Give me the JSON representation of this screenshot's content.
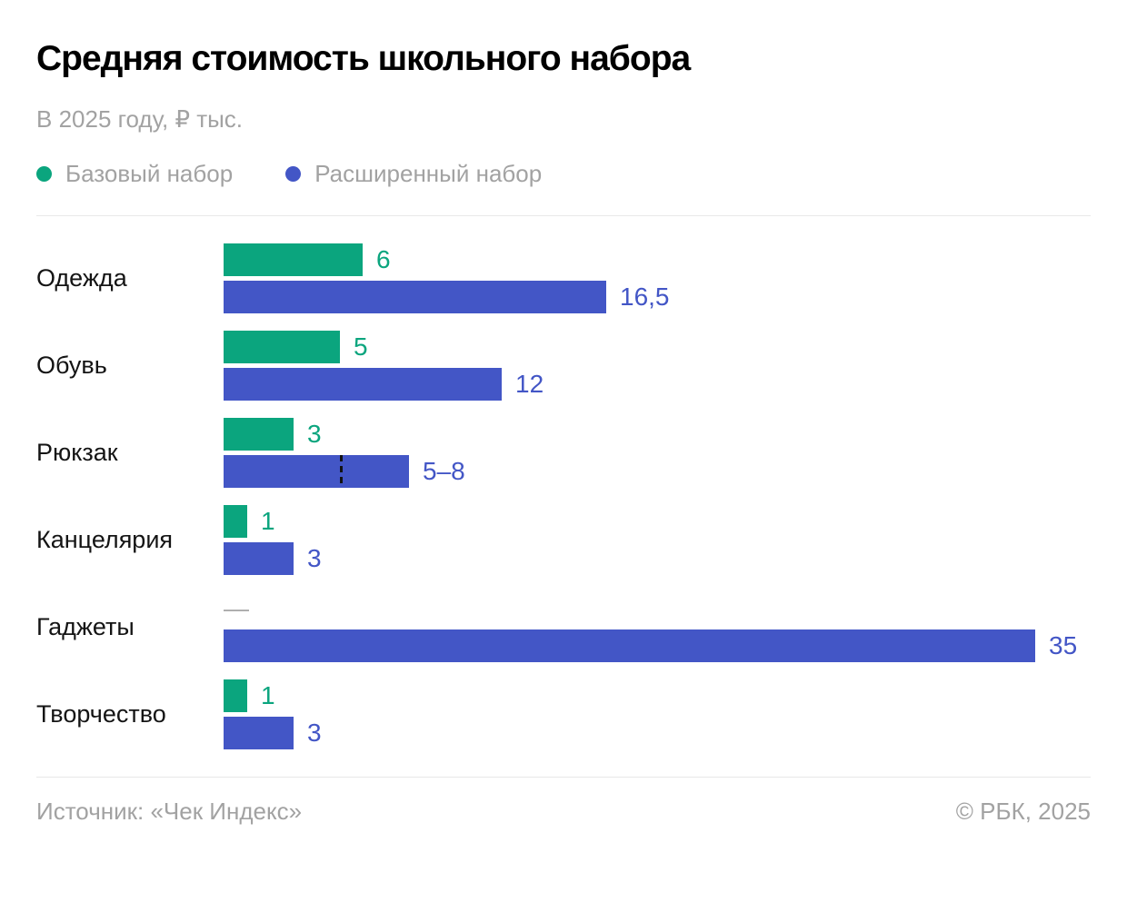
{
  "header": {
    "title": "Средняя стоимость школьного набора",
    "subtitle": "В 2025 году, ₽ тыс."
  },
  "legend": {
    "items": [
      {
        "label": "Базовый набор",
        "color": "#0ba57e"
      },
      {
        "label": "Расширенный набор",
        "color": "#4356c6"
      }
    ]
  },
  "footer": {
    "source": "Источник: «Чек Индекс»",
    "copyright": "© РБК, 2025"
  },
  "colors": {
    "basic_green": "#0ba57e",
    "extended_blue": "#4356c6",
    "muted_gray_text": "#a2a2a2",
    "category_text": "#141414",
    "divider": "#e8e8e8",
    "no_data_dash": "#ababab",
    "range_marker": "#121212"
  },
  "chart_data": {
    "type": "bar",
    "orientation": "horizontal",
    "title": "Средняя стоимость школьного набора",
    "subtitle": "В 2025 году, ₽ тыс.",
    "unit": "₽ тыс.",
    "legend_position": "top",
    "grid": false,
    "xlim": [
      0,
      35
    ],
    "categories": [
      "Одежда",
      "Обувь",
      "Рюкзак",
      "Канцелярия",
      "Гаджеты",
      "Творчество"
    ],
    "series": [
      {
        "name": "Базовый набор",
        "color": "#0ba57e",
        "values": [
          6,
          5,
          3,
          1,
          null,
          1
        ],
        "labels": [
          "6",
          "5",
          "3",
          "1",
          "—",
          "1"
        ]
      },
      {
        "name": "Расширенный набор",
        "color": "#4356c6",
        "values": [
          16.5,
          12,
          8,
          3,
          35,
          3
        ],
        "labels": [
          "16,5",
          "12",
          "5–8",
          "3",
          "35",
          "3"
        ],
        "range_markers": [
          null,
          null,
          5,
          null,
          null,
          null
        ]
      }
    ]
  }
}
